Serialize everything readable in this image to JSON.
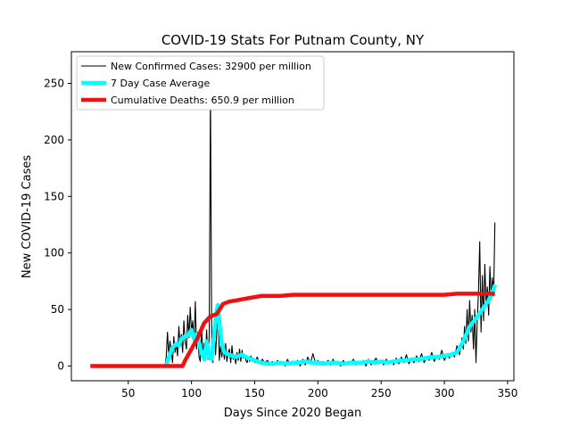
{
  "chart_data": {
    "type": "line",
    "title": "COVID-19 Stats For Putnam County, NY",
    "xlabel": "Days Since 2020 Began",
    "ylabel": "New COVID-19 Cases",
    "xlim": [
      5,
      355
    ],
    "ylim": [
      -13,
      278
    ],
    "xticks": [
      50,
      100,
      150,
      200,
      250,
      300,
      350
    ],
    "yticks": [
      0,
      50,
      100,
      150,
      200,
      250
    ],
    "grid": false,
    "legend_position": "top-left",
    "series": [
      {
        "name": "New Confirmed Cases: 32900 per million",
        "color": "#000000",
        "style": "thin",
        "points": [
          [
            20,
            0
          ],
          [
            79,
            0
          ],
          [
            80,
            8
          ],
          [
            81,
            30
          ],
          [
            82,
            10
          ],
          [
            83,
            22
          ],
          [
            84,
            14
          ],
          [
            85,
            3
          ],
          [
            86,
            26
          ],
          [
            87,
            12
          ],
          [
            88,
            20
          ],
          [
            89,
            9
          ],
          [
            90,
            35
          ],
          [
            91,
            18
          ],
          [
            92,
            28
          ],
          [
            93,
            12
          ],
          [
            94,
            40
          ],
          [
            95,
            22
          ],
          [
            96,
            15
          ],
          [
            97,
            45
          ],
          [
            98,
            25
          ],
          [
            99,
            52
          ],
          [
            100,
            30
          ],
          [
            101,
            40
          ],
          [
            102,
            18
          ],
          [
            103,
            57
          ],
          [
            104,
            15
          ],
          [
            105,
            30
          ],
          [
            106,
            8
          ],
          [
            107,
            4
          ],
          [
            108,
            35
          ],
          [
            109,
            10
          ],
          [
            110,
            20
          ],
          [
            111,
            5
          ],
          [
            112,
            32
          ],
          [
            113,
            6
          ],
          [
            114,
            26
          ],
          [
            115,
            245
          ],
          [
            116,
            18
          ],
          [
            117,
            3
          ],
          [
            118,
            40
          ],
          [
            119,
            10
          ],
          [
            120,
            30
          ],
          [
            121,
            54
          ],
          [
            122,
            5
          ],
          [
            123,
            18
          ],
          [
            124,
            8
          ],
          [
            125,
            16
          ],
          [
            126,
            6
          ],
          [
            127,
            20
          ],
          [
            128,
            4
          ],
          [
            129,
            12
          ],
          [
            130,
            15
          ],
          [
            131,
            3
          ],
          [
            132,
            18
          ],
          [
            133,
            6
          ],
          [
            134,
            10
          ],
          [
            135,
            2
          ],
          [
            136,
            12
          ],
          [
            137,
            5
          ],
          [
            138,
            15
          ],
          [
            139,
            4
          ],
          [
            140,
            14
          ],
          [
            141,
            7
          ],
          [
            142,
            10
          ],
          [
            143,
            5
          ],
          [
            144,
            3
          ],
          [
            145,
            8
          ],
          [
            146,
            4
          ],
          [
            147,
            9
          ],
          [
            148,
            5
          ],
          [
            149,
            7
          ],
          [
            150,
            3
          ],
          [
            152,
            8
          ],
          [
            154,
            2
          ],
          [
            156,
            6
          ],
          [
            158,
            3
          ],
          [
            160,
            5
          ],
          [
            162,
            2
          ],
          [
            164,
            4
          ],
          [
            166,
            1
          ],
          [
            168,
            5
          ],
          [
            170,
            2
          ],
          [
            172,
            4
          ],
          [
            174,
            0
          ],
          [
            176,
            6
          ],
          [
            178,
            1
          ],
          [
            180,
            4
          ],
          [
            182,
            2
          ],
          [
            184,
            5
          ],
          [
            186,
            0
          ],
          [
            188,
            6
          ],
          [
            190,
            1
          ],
          [
            192,
            8
          ],
          [
            194,
            2
          ],
          [
            196,
            11
          ],
          [
            198,
            3
          ],
          [
            200,
            5
          ],
          [
            202,
            1
          ],
          [
            204,
            4
          ],
          [
            206,
            2
          ],
          [
            208,
            5
          ],
          [
            210,
            1
          ],
          [
            212,
            6
          ],
          [
            214,
            2
          ],
          [
            216,
            4
          ],
          [
            218,
            0
          ],
          [
            220,
            5
          ],
          [
            222,
            1
          ],
          [
            224,
            4
          ],
          [
            226,
            2
          ],
          [
            228,
            6
          ],
          [
            230,
            1
          ],
          [
            232,
            4
          ],
          [
            234,
            2
          ],
          [
            236,
            5
          ],
          [
            238,
            0
          ],
          [
            240,
            6
          ],
          [
            242,
            1
          ],
          [
            244,
            4
          ],
          [
            246,
            7
          ],
          [
            248,
            2
          ],
          [
            250,
            5
          ],
          [
            252,
            1
          ],
          [
            254,
            6
          ],
          [
            256,
            2
          ],
          [
            258,
            5
          ],
          [
            260,
            1
          ],
          [
            262,
            7
          ],
          [
            264,
            2
          ],
          [
            266,
            8
          ],
          [
            268,
            3
          ],
          [
            270,
            10
          ],
          [
            272,
            2
          ],
          [
            274,
            7
          ],
          [
            276,
            3
          ],
          [
            278,
            9
          ],
          [
            280,
            4
          ],
          [
            282,
            11
          ],
          [
            284,
            3
          ],
          [
            286,
            8
          ],
          [
            288,
            5
          ],
          [
            290,
            12
          ],
          [
            292,
            4
          ],
          [
            294,
            9
          ],
          [
            296,
            6
          ],
          [
            298,
            14
          ],
          [
            300,
            5
          ],
          [
            302,
            10
          ],
          [
            304,
            7
          ],
          [
            306,
            12
          ],
          [
            308,
            8
          ],
          [
            310,
            18
          ],
          [
            312,
            10
          ],
          [
            314,
            25
          ],
          [
            315,
            15
          ],
          [
            316,
            35
          ],
          [
            317,
            20
          ],
          [
            318,
            50
          ],
          [
            319,
            22
          ],
          [
            320,
            58
          ],
          [
            321,
            30
          ],
          [
            322,
            45
          ],
          [
            323,
            15
          ],
          [
            324,
            50
          ],
          [
            325,
            3
          ],
          [
            326,
            40
          ],
          [
            327,
            65
          ],
          [
            328,
            110
          ],
          [
            329,
            30
          ],
          [
            330,
            80
          ],
          [
            331,
            40
          ],
          [
            332,
            90
          ],
          [
            333,
            55
          ],
          [
            334,
            70
          ],
          [
            335,
            45
          ],
          [
            336,
            88
          ],
          [
            337,
            60
          ],
          [
            338,
            78
          ],
          [
            339,
            62
          ],
          [
            340,
            127
          ]
        ]
      },
      {
        "name": "7 Day Case Average",
        "color": "#00ffff",
        "style": "thick",
        "points": [
          [
            80,
            0
          ],
          [
            82,
            8
          ],
          [
            85,
            16
          ],
          [
            88,
            20
          ],
          [
            90,
            18
          ],
          [
            92,
            24
          ],
          [
            95,
            26
          ],
          [
            98,
            28
          ],
          [
            100,
            32
          ],
          [
            102,
            24
          ],
          [
            104,
            28
          ],
          [
            106,
            20
          ],
          [
            108,
            12
          ],
          [
            110,
            6
          ],
          [
            112,
            22
          ],
          [
            114,
            8
          ],
          [
            116,
            6
          ],
          [
            118,
            30
          ],
          [
            120,
            50
          ],
          [
            121,
            54
          ],
          [
            122,
            40
          ],
          [
            124,
            20
          ],
          [
            126,
            12
          ],
          [
            130,
            10
          ],
          [
            135,
            8
          ],
          [
            140,
            10
          ],
          [
            145,
            7
          ],
          [
            150,
            5
          ],
          [
            155,
            3
          ],
          [
            160,
            2
          ],
          [
            165,
            2
          ],
          [
            170,
            3
          ],
          [
            175,
            2
          ],
          [
            180,
            3
          ],
          [
            185,
            3
          ],
          [
            190,
            4
          ],
          [
            195,
            3
          ],
          [
            200,
            3
          ],
          [
            205,
            2
          ],
          [
            210,
            3
          ],
          [
            215,
            3
          ],
          [
            220,
            2
          ],
          [
            225,
            3
          ],
          [
            230,
            3
          ],
          [
            235,
            3
          ],
          [
            240,
            4
          ],
          [
            245,
            3
          ],
          [
            250,
            4
          ],
          [
            255,
            3
          ],
          [
            260,
            4
          ],
          [
            265,
            5
          ],
          [
            270,
            5
          ],
          [
            275,
            6
          ],
          [
            280,
            6
          ],
          [
            285,
            7
          ],
          [
            290,
            8
          ],
          [
            295,
            8
          ],
          [
            300,
            9
          ],
          [
            305,
            10
          ],
          [
            310,
            12
          ],
          [
            315,
            22
          ],
          [
            320,
            35
          ],
          [
            325,
            42
          ],
          [
            330,
            50
          ],
          [
            335,
            58
          ],
          [
            338,
            65
          ],
          [
            340,
            72
          ]
        ]
      },
      {
        "name": "Cumulative Deaths: 650.9 per million",
        "color": "#ee1111",
        "style": "thick",
        "points": [
          [
            20,
            0
          ],
          [
            93,
            0
          ],
          [
            95,
            5
          ],
          [
            100,
            15
          ],
          [
            105,
            25
          ],
          [
            110,
            38
          ],
          [
            115,
            44
          ],
          [
            120,
            46
          ],
          [
            125,
            55
          ],
          [
            130,
            57
          ],
          [
            135,
            58
          ],
          [
            140,
            59
          ],
          [
            145,
            60
          ],
          [
            150,
            61
          ],
          [
            155,
            62
          ],
          [
            160,
            62
          ],
          [
            170,
            62
          ],
          [
            180,
            63
          ],
          [
            200,
            63
          ],
          [
            250,
            63
          ],
          [
            300,
            63
          ],
          [
            310,
            64
          ],
          [
            340,
            64
          ]
        ]
      }
    ]
  }
}
